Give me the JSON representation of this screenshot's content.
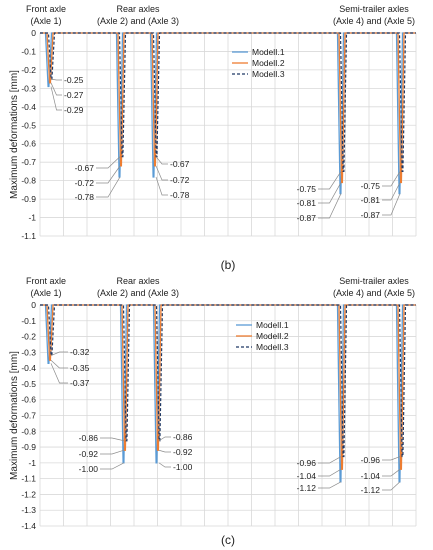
{
  "colors": {
    "model_1_1": "#5b9bd5",
    "model_1_2": "#ed7d31",
    "model_1_3": "#1f3864",
    "grid": "#d9d9d9",
    "leader": "#8c8c8c"
  },
  "chart_data": [
    {
      "type": "line",
      "panel_label": "(b)",
      "ylabel": "Maximum deformations [mm]",
      "ylim": [
        -1.1,
        0
      ],
      "yticks": [
        0,
        -0.1,
        -0.2,
        -0.3,
        -0.4,
        -0.5,
        -0.6,
        -0.7,
        -0.8,
        -0.9,
        -1,
        -1.1
      ],
      "ytick_labels": [
        "0",
        "-0.1",
        "-0.2",
        "-0.3",
        "-0.4",
        "-0.5",
        "-0.6",
        "-0.7",
        "-0.8",
        "-0.9",
        "-1",
        "-1.1"
      ],
      "grid": true,
      "legend_position": "top-right",
      "series": [
        {
          "name": "ModelI.1",
          "style": "solid",
          "color": "#5b9bd5"
        },
        {
          "name": "ModelI.2",
          "style": "solid",
          "color": "#ed7d31"
        },
        {
          "name": "ModelI.3",
          "style": "dashed",
          "color": "#1f3864"
        }
      ],
      "axle_groups": [
        {
          "title_line1": "Front axle",
          "title_line2": "(Axle 1)"
        },
        {
          "title_line1": "Rear axles",
          "title_line2": "(Axle 2) and (Axle 3)"
        },
        {
          "title_line1": "Semi-trailer axles",
          "title_line2": "(Axle 4) and (Axle 5)"
        }
      ],
      "axles": [
        {
          "axle": "Axle 1",
          "values": [
            -0.29,
            -0.27,
            -0.25
          ],
          "labels": [
            "-0.25",
            "-0.27",
            "-0.29"
          ]
        },
        {
          "axle": "Axle 2",
          "values": [
            -0.78,
            -0.72,
            -0.67
          ],
          "labels": [
            "-0.67",
            "-0.72",
            "-0.78"
          ]
        },
        {
          "axle": "Axle 3",
          "values": [
            -0.78,
            -0.72,
            -0.67
          ],
          "labels": [
            "-0.67",
            "-0.72",
            "-0.78"
          ]
        },
        {
          "axle": "Axle 4",
          "values": [
            -0.87,
            -0.81,
            -0.75
          ],
          "labels": [
            "-0.75",
            "-0.81",
            "-0.87"
          ]
        },
        {
          "axle": "Axle 5",
          "values": [
            -0.87,
            -0.81,
            -0.75
          ],
          "labels": [
            "-0.75",
            "-0.81",
            "-0.87"
          ]
        }
      ]
    },
    {
      "type": "line",
      "panel_label": "(c)",
      "ylabel": "Maximum deformations [mm]",
      "ylim": [
        -1.4,
        0
      ],
      "yticks": [
        0,
        -0.1,
        -0.2,
        -0.3,
        -0.4,
        -0.5,
        -0.6,
        -0.7,
        -0.8,
        -0.9,
        -1,
        -1.1,
        -1.2,
        -1.3,
        -1.4
      ],
      "ytick_labels": [
        "0",
        "-0.1",
        "-0.2",
        "-0.3",
        "-0.4",
        "-0.5",
        "-0.6",
        "-0.7",
        "-0.8",
        "-0.9",
        "-1",
        "-1.1",
        "-1.2",
        "-1.3",
        "-1.4"
      ],
      "grid": true,
      "legend_position": "top-right",
      "series": [
        {
          "name": "ModelI.1",
          "style": "solid",
          "color": "#5b9bd5"
        },
        {
          "name": "ModelI.2",
          "style": "solid",
          "color": "#ed7d31"
        },
        {
          "name": "ModelI.3",
          "style": "dashed",
          "color": "#1f3864"
        }
      ],
      "axle_groups": [
        {
          "title_line1": "Front axle",
          "title_line2": "(Axle 1)"
        },
        {
          "title_line1": "Rear axles",
          "title_line2": "(Axle 2) and (Axle 3)"
        },
        {
          "title_line1": "Semi-trailer axles",
          "title_line2": "(Axle 4) and (Axle 5)"
        }
      ],
      "axles": [
        {
          "axle": "Axle 1",
          "values": [
            -0.37,
            -0.35,
            -0.32
          ],
          "labels": [
            "-0.32",
            "-0.35",
            "-0.37"
          ]
        },
        {
          "axle": "Axle 2",
          "values": [
            -1.0,
            -0.92,
            -0.86
          ],
          "labels": [
            "-0.86",
            "-0.92",
            "-1.00"
          ]
        },
        {
          "axle": "Axle 3",
          "values": [
            -1.0,
            -0.92,
            -0.86
          ],
          "labels": [
            "-0.86",
            "-0.92",
            "-1.00"
          ]
        },
        {
          "axle": "Axle 4",
          "values": [
            -1.12,
            -1.04,
            -0.96
          ],
          "labels": [
            "-0.96",
            "-1.04",
            "-1.12"
          ]
        },
        {
          "axle": "Axle 5",
          "values": [
            -1.12,
            -1.04,
            -0.96
          ],
          "labels": [
            "-0.96",
            "-1.04",
            "-1.12"
          ]
        }
      ]
    }
  ]
}
